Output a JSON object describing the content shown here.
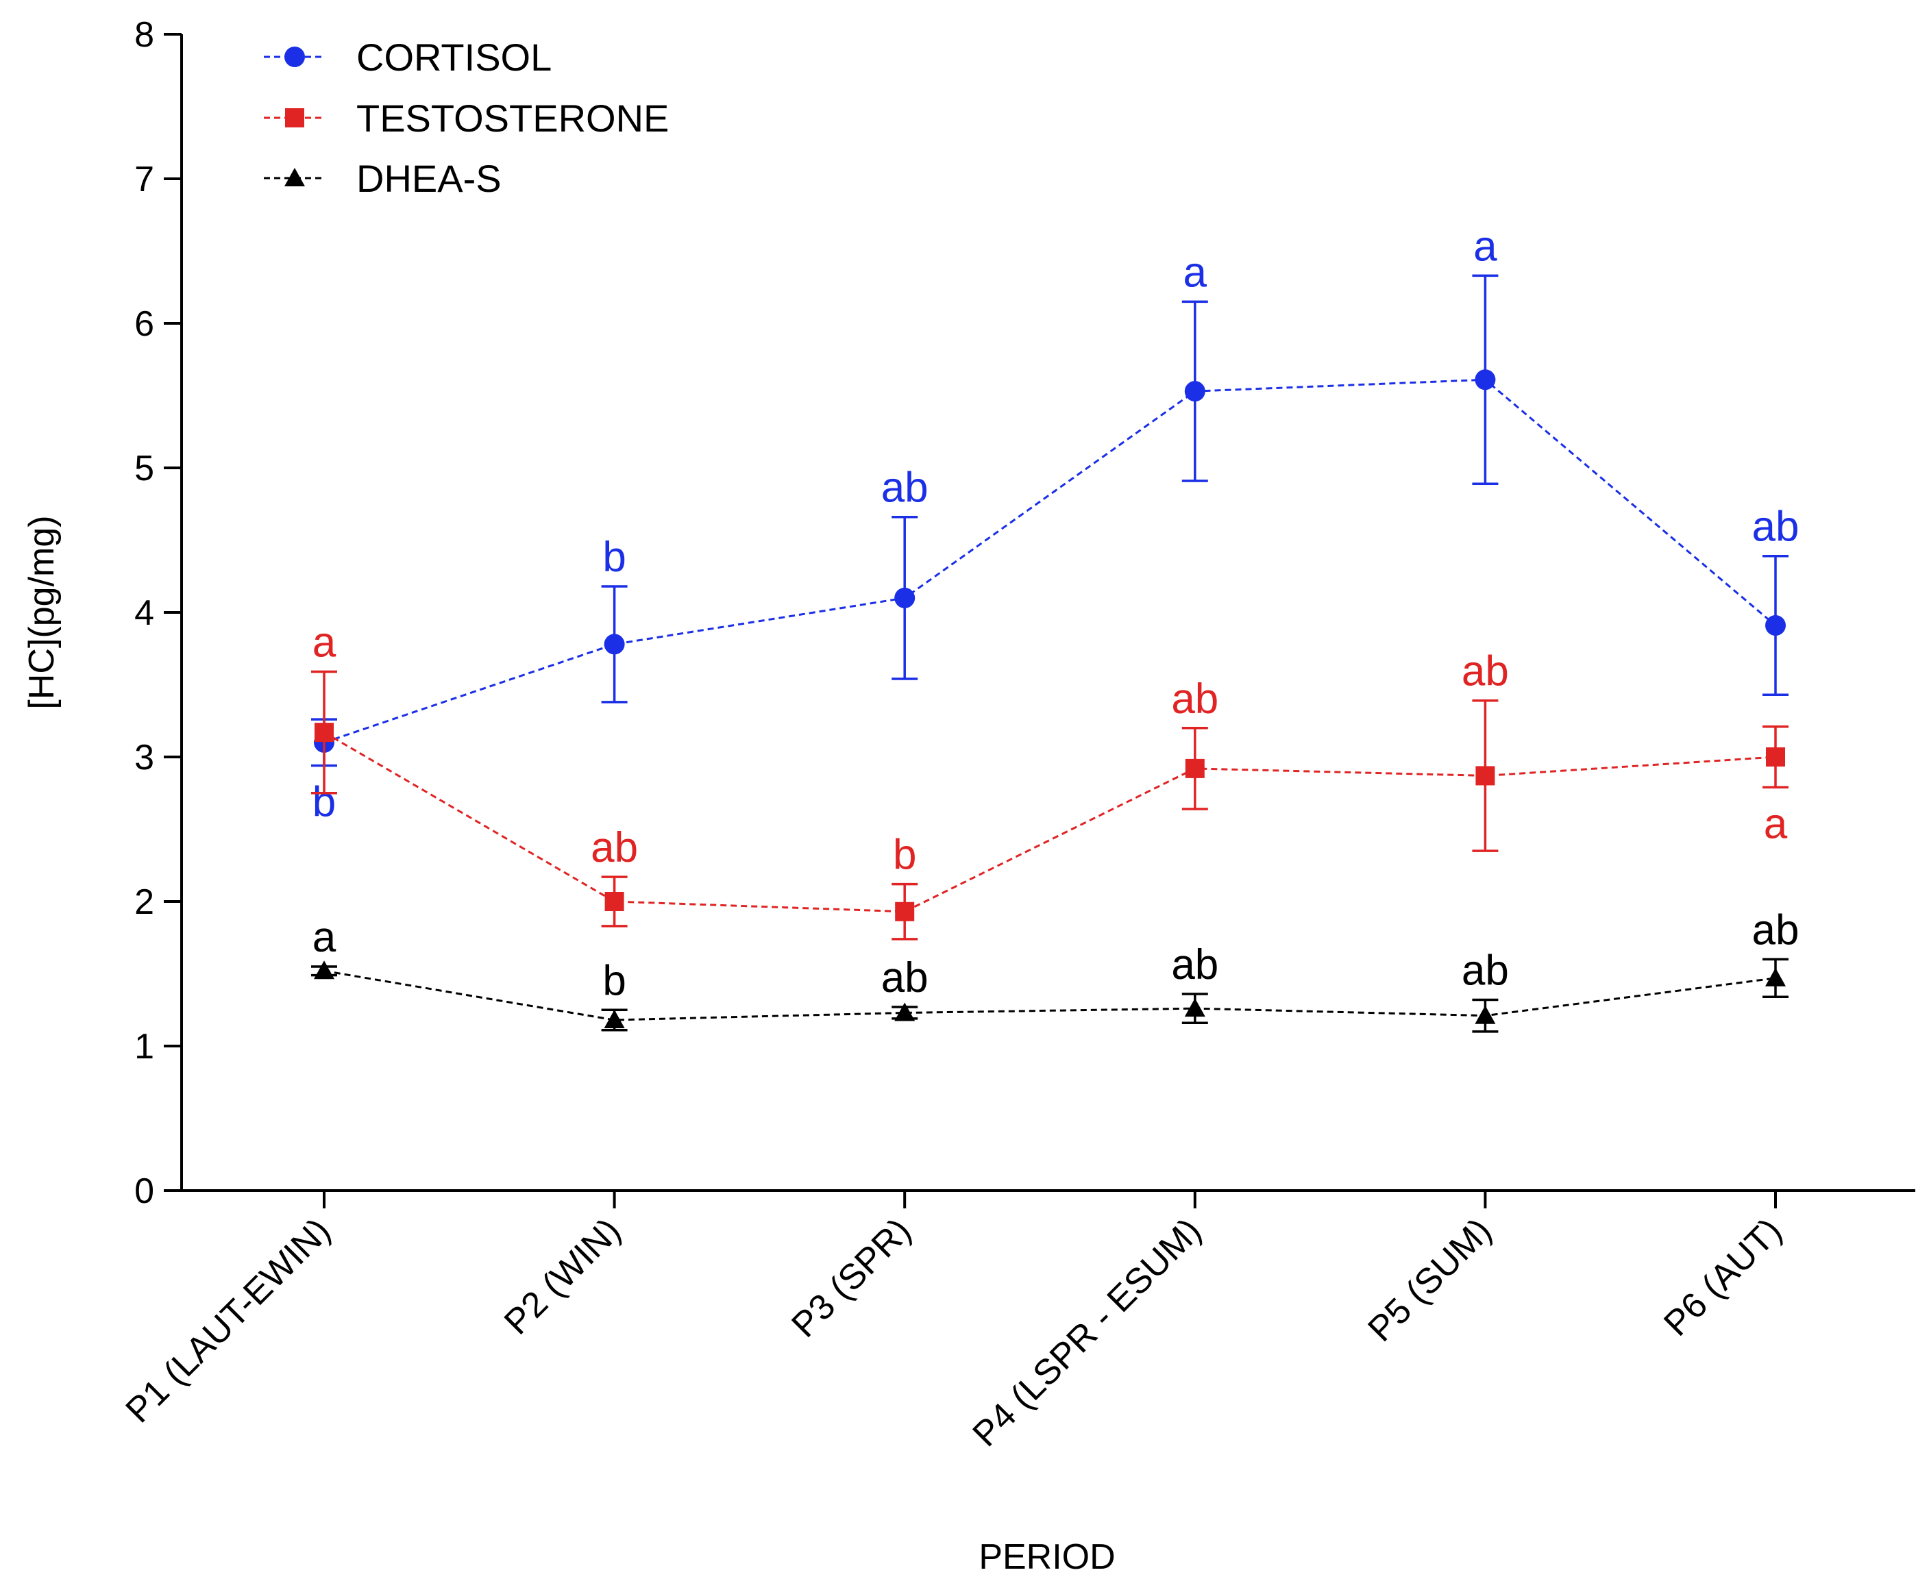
{
  "chart_data": {
    "type": "line",
    "title": "",
    "xlabel": "PERIOD",
    "ylabel": "[HC](pg/mg)",
    "ylim": [
      0,
      8
    ],
    "yticks": [
      "0",
      "1",
      "2",
      "3",
      "4",
      "5",
      "6",
      "7",
      "8"
    ],
    "categories": [
      "P1 (LAUT-EWIN)",
      "P2 (WIN)",
      "P3 (SPR)",
      "P4 (LSPR - ESUM)",
      "P5 (SUM)",
      "P6 (AUT)"
    ],
    "legend_position": "top-left",
    "series": [
      {
        "name": "CORTISOL",
        "color": "#1a2fe6",
        "marker": "circle",
        "values": [
          3.1,
          3.78,
          4.1,
          5.53,
          5.61,
          3.91
        ],
        "error": [
          0.16,
          0.4,
          0.56,
          0.62,
          0.72,
          0.48
        ],
        "labels": [
          "b",
          "b",
          "ab",
          "a",
          "a",
          "ab"
        ],
        "label_side": [
          "below",
          "above",
          "above",
          "above",
          "above",
          "above"
        ]
      },
      {
        "name": "TESTOSTERONE",
        "color": "#e02424",
        "marker": "square",
        "values": [
          3.17,
          2.0,
          1.93,
          2.92,
          2.87,
          3.0
        ],
        "error": [
          0.42,
          0.17,
          0.19,
          0.28,
          0.52,
          0.21
        ],
        "labels": [
          "a",
          "ab",
          "b",
          "ab",
          "ab",
          "a"
        ],
        "label_side": [
          "above",
          "above",
          "above",
          "above",
          "above",
          "below"
        ]
      },
      {
        "name": "DHEA-S",
        "color": "#000000",
        "marker": "triangle",
        "values": [
          1.52,
          1.18,
          1.23,
          1.26,
          1.21,
          1.47
        ],
        "error": [
          0.03,
          0.07,
          0.04,
          0.1,
          0.11,
          0.13
        ],
        "labels": [
          "a",
          "b",
          "ab",
          "ab",
          "ab",
          "ab"
        ],
        "label_side": [
          "above",
          "above",
          "above",
          "above",
          "above",
          "above"
        ]
      }
    ]
  }
}
